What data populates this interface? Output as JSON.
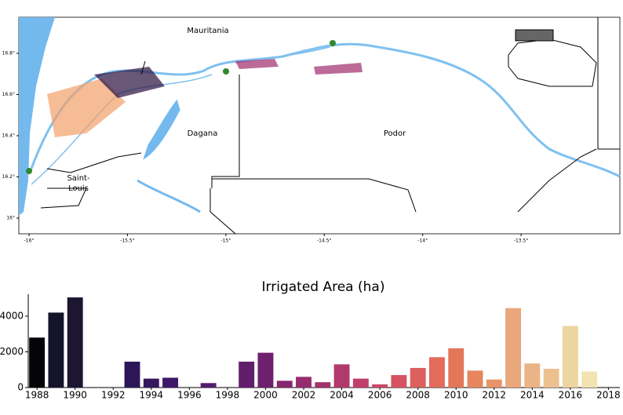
{
  "map": {
    "labels": [
      "Mauritania",
      "Dagana",
      "Podor",
      "Saint-",
      "Louis"
    ],
    "lonlim": [
      -16.052,
      -12.998
    ],
    "latlim": [
      15.924,
      16.975
    ],
    "lonticks": [
      {
        "value": -16,
        "label": "-16°"
      },
      {
        "value": -15.5,
        "label": "-15.5°"
      },
      {
        "value": -15,
        "label": "-15°"
      },
      {
        "value": -14.5,
        "label": "-14.5°"
      },
      {
        "value": -14,
        "label": "-14°"
      },
      {
        "value": -13.5,
        "label": "-13.5°"
      }
    ],
    "latticks": [
      {
        "value": 16,
        "label": "16°"
      },
      {
        "value": 16.2,
        "label": "16.2°"
      },
      {
        "value": 16.4,
        "label": "16.4°"
      },
      {
        "value": 16.6,
        "label": "16.6°"
      },
      {
        "value": 16.8,
        "label": "16.8°"
      }
    ]
  },
  "chart_data": {
    "type": "bar",
    "title": "Irrigated Area (ha)",
    "x": [
      1988,
      1989,
      1990,
      1993,
      1994,
      1995,
      1997,
      1999,
      2000,
      2001,
      2002,
      2003,
      2004,
      2005,
      2006,
      2007,
      2008,
      2009,
      2010,
      2011,
      2012,
      2013,
      2014,
      2015,
      2016,
      2017
    ],
    "values": [
      2800,
      4200,
      5050,
      1450,
      500,
      550,
      250,
      1450,
      1950,
      380,
      600,
      300,
      1300,
      500,
      180,
      700,
      1100,
      1700,
      2200,
      950,
      450,
      4450,
      1350,
      1050,
      3450,
      900
    ],
    "colors": [
      "#050408",
      "#15132a",
      "#1c1630",
      "#2d1658",
      "#35175f",
      "#3d1866",
      "#521c6e",
      "#611c6c",
      "#6e1f6e",
      "#85276f",
      "#952d6e",
      "#a3336d",
      "#b2396b",
      "#c03f68",
      "#cc4766",
      "#d65262",
      "#dd5f5e",
      "#e26b5a",
      "#e4775a",
      "#e7855f",
      "#e89468",
      "#e9a77c",
      "#ebb486",
      "#ecc08f",
      "#edd59f",
      "#f2e4b0"
    ],
    "xlim": [
      1987.5,
      2018.6
    ],
    "xticks": [
      1988,
      1990,
      1992,
      1994,
      1996,
      1998,
      2000,
      2002,
      2004,
      2006,
      2008,
      2010,
      2012,
      2014,
      2016,
      2018
    ],
    "ylim": [
      0,
      5230
    ],
    "yticks": [
      0,
      2000,
      4000
    ]
  }
}
